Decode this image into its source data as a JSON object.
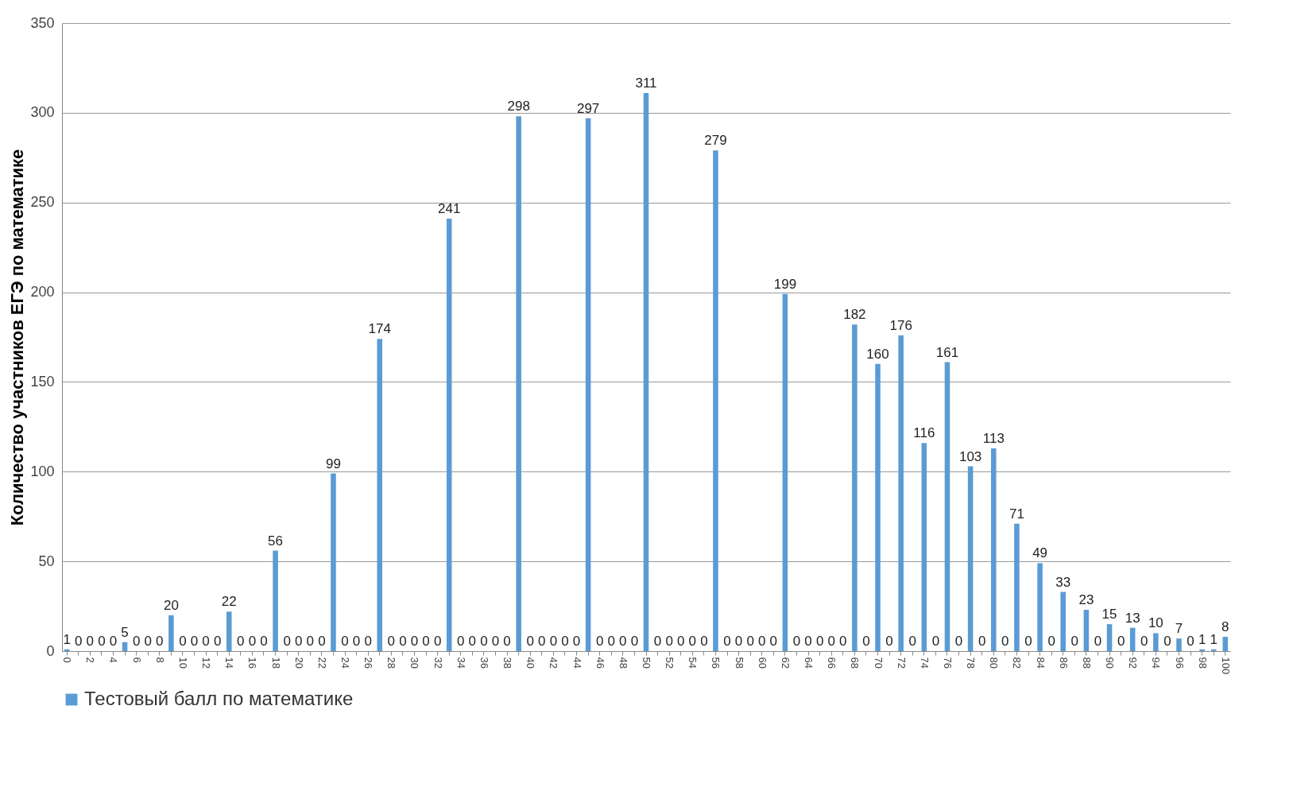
{
  "chart_data": {
    "type": "bar",
    "ylabel": "Количество участников ЕГЭ по математике",
    "categories": [
      "0",
      null,
      "2",
      null,
      "4",
      null,
      "6",
      null,
      "8",
      null,
      "10",
      null,
      "12",
      null,
      "14",
      null,
      "16",
      null,
      "18",
      null,
      "20",
      null,
      "22",
      null,
      "24",
      null,
      "26",
      null,
      "28",
      null,
      "30",
      null,
      "32",
      null,
      "34",
      null,
      "36",
      null,
      "38",
      null,
      "40",
      null,
      "42",
      null,
      "44",
      null,
      "46",
      null,
      "48",
      null,
      "50",
      null,
      "52",
      null,
      "54",
      null,
      "56",
      null,
      "58",
      null,
      "60",
      null,
      "62",
      null,
      "64",
      null,
      "66",
      null,
      "68",
      null,
      "70",
      null,
      "72",
      null,
      "74",
      null,
      "76",
      null,
      "78",
      null,
      "80",
      null,
      "82",
      null,
      "84",
      null,
      "86",
      null,
      "88",
      null,
      "90",
      null,
      "92",
      null,
      "94",
      null,
      "96",
      null,
      "98",
      null,
      "100"
    ],
    "series": [
      {
        "name": "Тестовый балл по математике",
        "color": "#5b9bd5",
        "values": [
          1,
          0,
          0,
          0,
          0,
          5,
          0,
          0,
          0,
          20,
          0,
          0,
          0,
          0,
          22,
          0,
          0,
          0,
          56,
          0,
          0,
          0,
          0,
          99,
          0,
          0,
          0,
          174,
          0,
          0,
          0,
          0,
          0,
          241,
          0,
          0,
          0,
          0,
          0,
          298,
          0,
          0,
          0,
          0,
          0,
          297,
          0,
          0,
          0,
          0,
          311,
          0,
          0,
          0,
          0,
          0,
          279,
          0,
          0,
          0,
          0,
          0,
          199,
          0,
          0,
          0,
          0,
          0,
          182,
          0,
          160,
          0,
          176,
          0,
          116,
          0,
          161,
          0,
          103,
          0,
          113,
          0,
          71,
          0,
          49,
          0,
          33,
          0,
          23,
          0,
          15,
          0,
          13,
          0,
          10,
          0,
          7,
          0,
          1,
          1,
          8
        ]
      }
    ],
    "ylim": [
      0,
      350
    ],
    "yticks": [
      0,
      50,
      100,
      150,
      200,
      250,
      300,
      350
    ],
    "grid": "y",
    "legend": "bottom",
    "data_labels": true
  }
}
